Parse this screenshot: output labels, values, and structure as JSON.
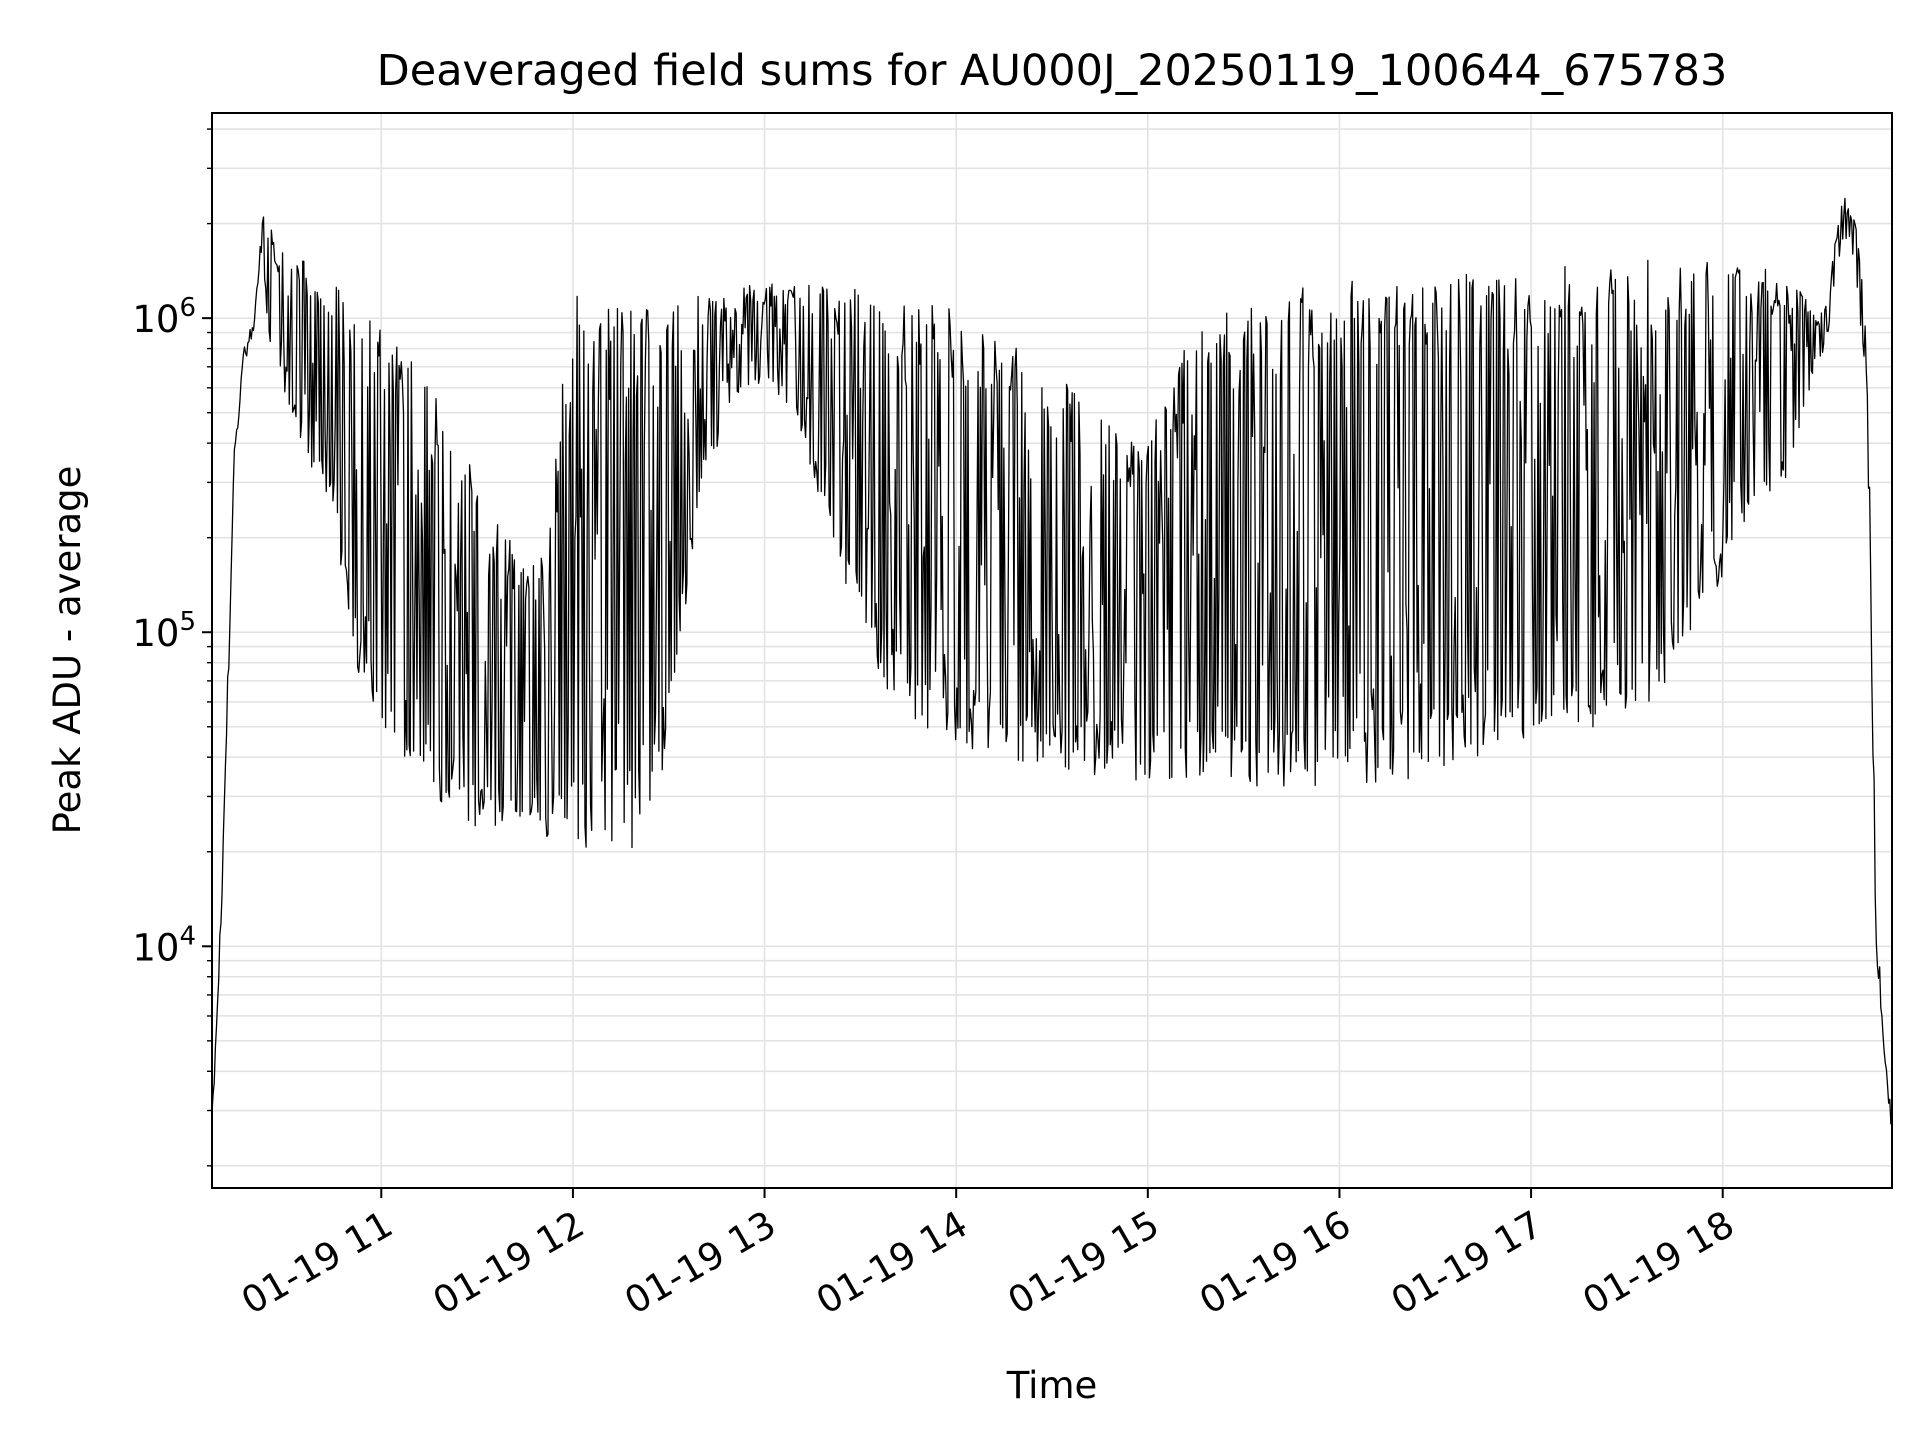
{
  "chart_data": {
    "type": "line",
    "title": "Deaveraged field sums for AU000J_20250119_100644_675783",
    "xlabel": "Time",
    "ylabel": "Peak ADU - average",
    "yscale": "log",
    "grid": true,
    "x_axis": {
      "start": "01-19 10:07",
      "end": "01-19 18:53",
      "ticks": [
        {
          "value": "01-19 11:00",
          "label": "01-19 11"
        },
        {
          "value": "01-19 12:00",
          "label": "01-19 12"
        },
        {
          "value": "01-19 13:00",
          "label": "01-19 13"
        },
        {
          "value": "01-19 14:00",
          "label": "01-19 14"
        },
        {
          "value": "01-19 15:00",
          "label": "01-19 15"
        },
        {
          "value": "01-19 16:00",
          "label": "01-19 16"
        },
        {
          "value": "01-19 17:00",
          "label": "01-19 17"
        },
        {
          "value": "01-19 18:00",
          "label": "01-19 18"
        }
      ]
    },
    "y_axis": {
      "range": [
        1700,
        4500000
      ],
      "ticks": [
        {
          "value": 10000,
          "base": "10",
          "exp": "4"
        },
        {
          "value": 100000,
          "base": "10",
          "exp": "5"
        },
        {
          "value": 1000000,
          "base": "10",
          "exp": "6"
        }
      ]
    },
    "series": [
      {
        "color": "#000000",
        "envelope": {
          "time": [
            "10:07",
            "10:08",
            "10:10",
            "10:12",
            "10:14",
            "10:17",
            "10:20",
            "10:23",
            "10:25",
            "10:28",
            "10:31",
            "10:35",
            "10:40",
            "10:45",
            "10:50",
            "10:55",
            "11:00",
            "11:05",
            "11:10",
            "11:15",
            "11:20",
            "11:25",
            "11:30",
            "11:40",
            "11:50",
            "12:00",
            "12:10",
            "12:20",
            "12:30",
            "12:40",
            "12:50",
            "13:00",
            "13:10",
            "13:20",
            "13:30",
            "13:40",
            "13:50",
            "14:00",
            "14:10",
            "14:20",
            "14:30",
            "14:40",
            "14:50",
            "15:00",
            "15:10",
            "15:20",
            "15:30",
            "15:40",
            "15:50",
            "16:00",
            "16:10",
            "16:20",
            "16:30",
            "16:40",
            "16:50",
            "17:00",
            "17:10",
            "17:20",
            "17:30",
            "17:40",
            "17:50",
            "18:00",
            "18:05",
            "18:10",
            "18:15",
            "18:20",
            "18:25",
            "18:30",
            "18:33",
            "18:36",
            "18:38",
            "18:40",
            "18:42",
            "18:44",
            "18:45",
            "18:46",
            "18:47",
            "18:48",
            "18:50",
            "18:52",
            "18:53"
          ],
          "upper": [
            3000,
            5000,
            15000,
            80000,
            400000,
            800000,
            1000000,
            2200000,
            2000000,
            1600000,
            1700000,
            1600000,
            1400000,
            1300000,
            1100000,
            1000000,
            1000000,
            900000,
            800000,
            600000,
            500000,
            400000,
            300000,
            200000,
            170000,
            1200000,
            1100000,
            1100000,
            1100000,
            1200000,
            1250000,
            1300000,
            1300000,
            1250000,
            1250000,
            1200000,
            1200000,
            1100000,
            1000000,
            800000,
            700000,
            550000,
            450000,
            400000,
            800000,
            1000000,
            1100000,
            1200000,
            1300000,
            1300000,
            1350000,
            1400000,
            1400000,
            1450000,
            1450000,
            1450000,
            1500000,
            1500000,
            1550000,
            1550000,
            1600000,
            1650000,
            1600000,
            1500000,
            1400000,
            1300000,
            1200000,
            1000000,
            1200000,
            2000000,
            2500000,
            2200000,
            2000000,
            1200000,
            800000,
            300000,
            60000,
            15000,
            6000,
            4000,
            3000
          ],
          "lower": [
            2800,
            4000,
            13000,
            60000,
            350000,
            700000,
            900000,
            1500000,
            800000,
            600000,
            500000,
            400000,
            300000,
            250000,
            100000,
            60000,
            50000,
            45000,
            35000,
            30000,
            26000,
            25000,
            24000,
            23000,
            22000,
            21000,
            20000,
            20000,
            40000,
            300000,
            500000,
            600000,
            500000,
            200000,
            100000,
            60000,
            50000,
            45000,
            40000,
            38000,
            36000,
            35000,
            34000,
            33000,
            33000,
            33000,
            32000,
            32000,
            32000,
            32000,
            33000,
            34000,
            35000,
            37000,
            39000,
            40000,
            42000,
            45000,
            50000,
            60000,
            90000,
            150000,
            200000,
            230000,
            250000,
            300000,
            500000,
            700000,
            900000,
            1500000,
            1800000,
            1600000,
            1200000,
            800000,
            500000,
            200000,
            40000,
            10000,
            5000,
            3000,
            2500
          ]
        }
      }
    ]
  }
}
